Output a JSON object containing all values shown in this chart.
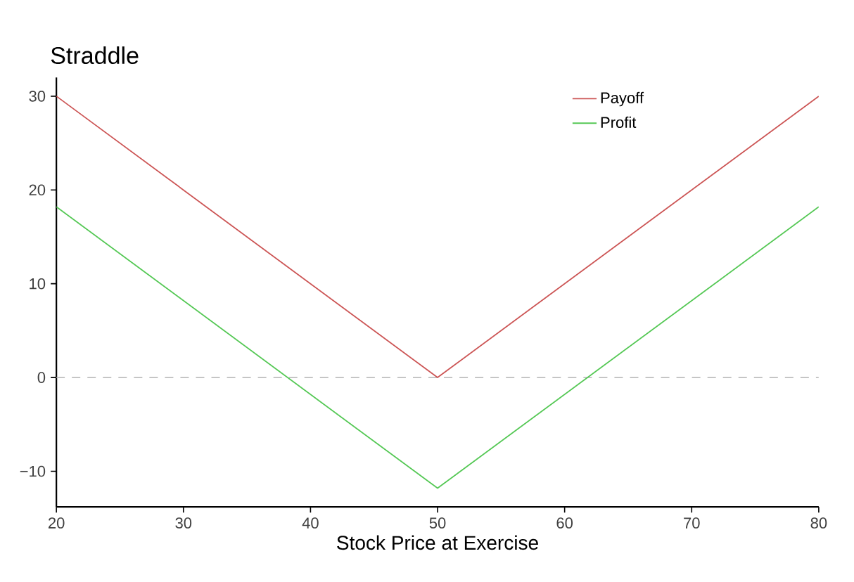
{
  "chart_data": {
    "type": "line",
    "title": "Straddle",
    "xlabel": "Stock Price at Exercise",
    "x": [
      20,
      50,
      80
    ],
    "series": [
      {
        "name": "Payoff",
        "color": "#cc5555",
        "values": [
          30,
          0,
          30
        ]
      },
      {
        "name": "Profit",
        "color": "#55c855",
        "values": [
          18.2,
          -11.8,
          18.2
        ]
      }
    ],
    "xlim": [
      20,
      80
    ],
    "xticks": [
      20,
      30,
      40,
      50,
      60,
      70,
      80
    ],
    "ylim": [
      -13.8,
      32
    ],
    "yticks": [
      {
        "value": -10,
        "label": "−10"
      },
      0,
      10,
      20,
      30
    ],
    "ref_lines": [
      {
        "axis": "y",
        "value": 0,
        "color": "#bebebe",
        "line_style": "dashed"
      }
    ],
    "legend": "top right",
    "grid": false,
    "marker": "none",
    "line_style": "solid"
  }
}
